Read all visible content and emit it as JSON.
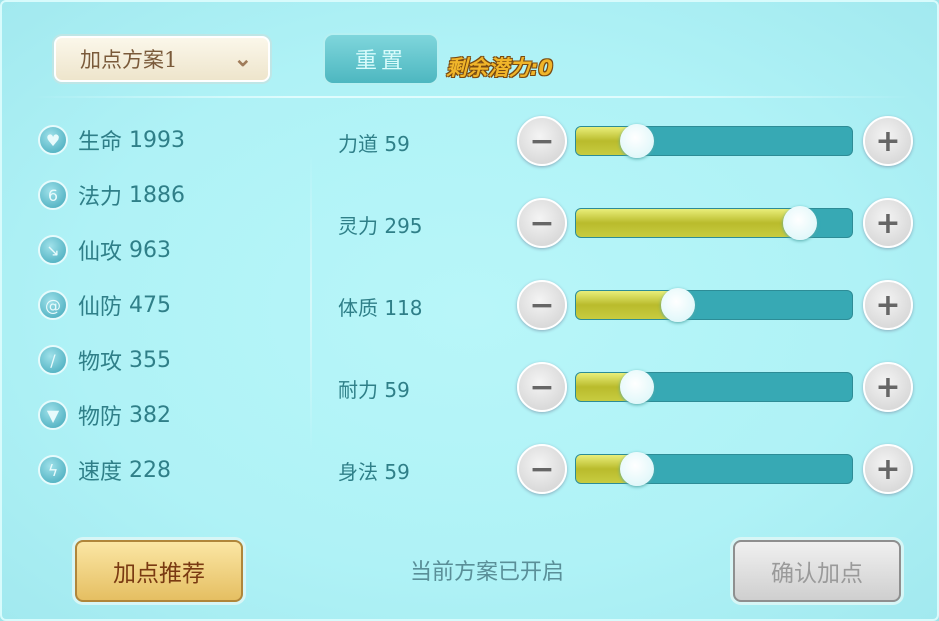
{
  "header": {
    "plan_label": "加点方案1",
    "reset_label": "重置",
    "remaining": "剩余潜力:0"
  },
  "stats": [
    {
      "label": "生命",
      "value": "1993",
      "icon": "heart-icon"
    },
    {
      "label": "法力",
      "value": "1886",
      "icon": "swirl-icon"
    },
    {
      "label": "仙攻",
      "value": "963",
      "icon": "wand-icon"
    },
    {
      "label": "仙防",
      "value": "475",
      "icon": "spiral-icon"
    },
    {
      "label": "物攻",
      "value": "355",
      "icon": "sword-icon"
    },
    {
      "label": "物防",
      "value": "382",
      "icon": "shield-icon"
    },
    {
      "label": "速度",
      "value": "228",
      "icon": "lightning-icon"
    }
  ],
  "attributes": [
    {
      "label": "力道 59",
      "fraction": 0.22
    },
    {
      "label": "灵力 295",
      "fraction": 0.81
    },
    {
      "label": "体质 118",
      "fraction": 0.37
    },
    {
      "label": "耐力 59",
      "fraction": 0.22
    },
    {
      "label": "身法 59",
      "fraction": 0.22
    }
  ],
  "footer": {
    "recommend_label": "加点推荐",
    "status": "当前方案已开启",
    "confirm_label": "确认加点"
  },
  "colors": {
    "text": "#2f7f88",
    "track": "#37a9b4",
    "fill": "#c7cc40",
    "remaining": "#f0b52a"
  }
}
